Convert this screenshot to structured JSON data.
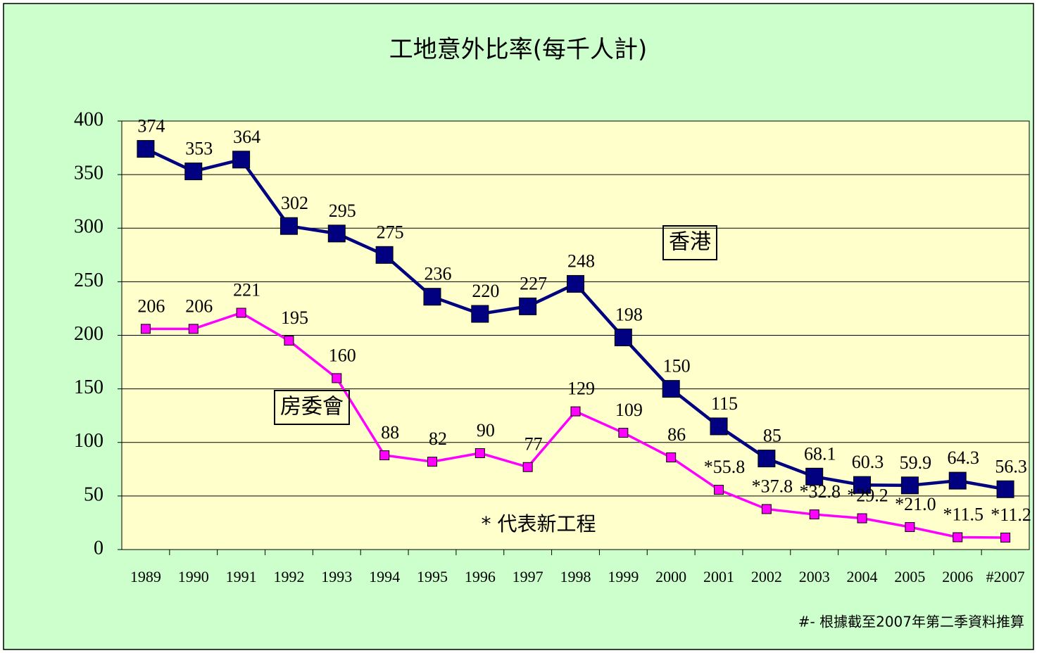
{
  "chart_data": {
    "type": "line",
    "title": "工地意外比率(每千人計)",
    "categories": [
      "1989",
      "1990",
      "1991",
      "1992",
      "1993",
      "1994",
      "1995",
      "1996",
      "1997",
      "1998",
      "1999",
      "2000",
      "2001",
      "2002",
      "2003",
      "2004",
      "2005",
      "2006",
      "#2007"
    ],
    "series": [
      {
        "name": "香港",
        "color": "#000080",
        "values": [
          374,
          353,
          364,
          302,
          295,
          275,
          236,
          220,
          227,
          248,
          198,
          150,
          115,
          85,
          68.1,
          60.3,
          59.9,
          64.3,
          56.3
        ]
      },
      {
        "name": "房委會",
        "color": "#ff00ff",
        "values": [
          206,
          206,
          221,
          195,
          160,
          88,
          82,
          90,
          77,
          129,
          109,
          86,
          55.8,
          37.8,
          32.8,
          29.2,
          21.0,
          11.5,
          11.2
        ],
        "value_labels": [
          "206",
          "206",
          "221",
          "195",
          "160",
          "88",
          "82",
          "90",
          "77",
          "129",
          "109",
          "86",
          "*55.8",
          "*37.8",
          "*32.8",
          "*29.2",
          "*21.0",
          "*11.5",
          "*11.2"
        ]
      }
    ],
    "ylim": [
      0,
      400
    ],
    "yticks": [
      0,
      50,
      100,
      150,
      200,
      250,
      300,
      350,
      400
    ],
    "grid": true,
    "annotations": [
      "* 代表新工程",
      "#- 根據截至2007年第二季資料推算"
    ]
  }
}
